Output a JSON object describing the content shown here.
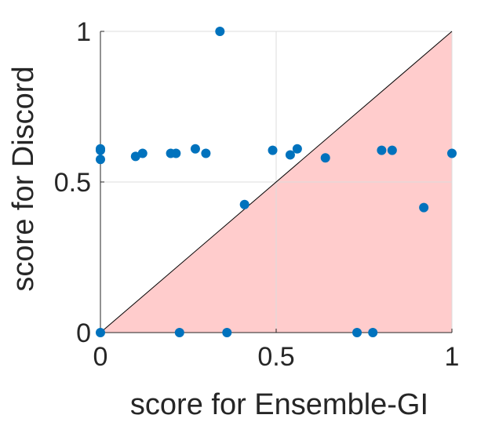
{
  "chart_data": {
    "type": "scatter",
    "title": "",
    "xlabel": "score for Ensemble-GI",
    "ylabel": "score for Discord",
    "xlim": [
      0,
      1
    ],
    "ylim": [
      0,
      1
    ],
    "xticks": [
      "0",
      "0.5",
      "1"
    ],
    "yticks": [
      "0",
      "0.5",
      "1"
    ],
    "grid": true,
    "shaded_region": "below diagonal y = x",
    "colors": {
      "points": "#0072BD",
      "shade": "#FFCCCC",
      "diagonal": "#000000",
      "grid": "#DDDDDD",
      "axis": "#262626"
    },
    "series": [
      {
        "points": [
          {
            "x": 0.0,
            "y": 0.61
          },
          {
            "x": 0.0,
            "y": 0.605
          },
          {
            "x": 0.0,
            "y": 0.575
          },
          {
            "x": 0.0,
            "y": 0.0
          },
          {
            "x": 0.1,
            "y": 0.585
          },
          {
            "x": 0.12,
            "y": 0.595
          },
          {
            "x": 0.2,
            "y": 0.595
          },
          {
            "x": 0.215,
            "y": 0.595
          },
          {
            "x": 0.225,
            "y": 0.0
          },
          {
            "x": 0.27,
            "y": 0.61
          },
          {
            "x": 0.3,
            "y": 0.595
          },
          {
            "x": 0.34,
            "y": 1.0
          },
          {
            "x": 0.36,
            "y": 0.0
          },
          {
            "x": 0.41,
            "y": 0.425
          },
          {
            "x": 0.49,
            "y": 0.605
          },
          {
            "x": 0.54,
            "y": 0.59
          },
          {
            "x": 0.56,
            "y": 0.61
          },
          {
            "x": 0.64,
            "y": 0.58
          },
          {
            "x": 0.73,
            "y": 0.0
          },
          {
            "x": 0.775,
            "y": 0.0
          },
          {
            "x": 0.8,
            "y": 0.605
          },
          {
            "x": 0.83,
            "y": 0.605
          },
          {
            "x": 0.92,
            "y": 0.415
          },
          {
            "x": 1.0,
            "y": 0.595
          }
        ]
      }
    ]
  }
}
